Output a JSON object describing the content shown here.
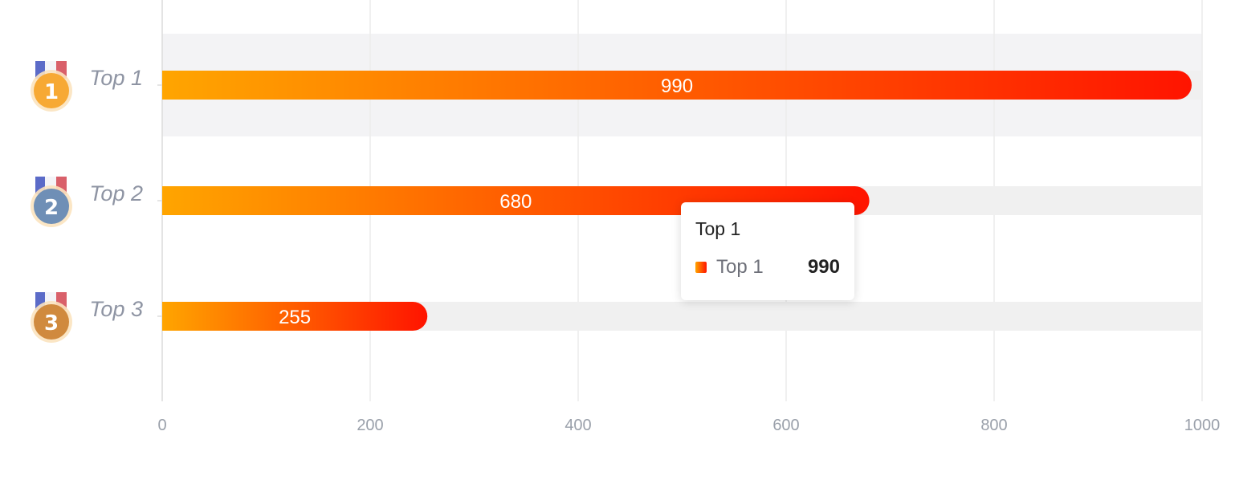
{
  "chart_data": {
    "type": "bar",
    "orientation": "horizontal",
    "categories": [
      "Top 1",
      "Top 2",
      "Top 3"
    ],
    "values": [
      990,
      680,
      255
    ],
    "xlim": [
      0,
      1000
    ],
    "x_ticks": [
      "0",
      "200",
      "400",
      "600",
      "800",
      "1000"
    ],
    "grid": true,
    "bar_gradient": [
      "#ffa500",
      "#ff1400"
    ],
    "medal_colors": [
      "#f7a934",
      "#6f8fb6",
      "#d08a3e"
    ],
    "medal_numbers": [
      "1",
      "2",
      "3"
    ]
  },
  "tooltip": {
    "title": "Top 1",
    "series_name": "Top 1",
    "value": "990"
  }
}
